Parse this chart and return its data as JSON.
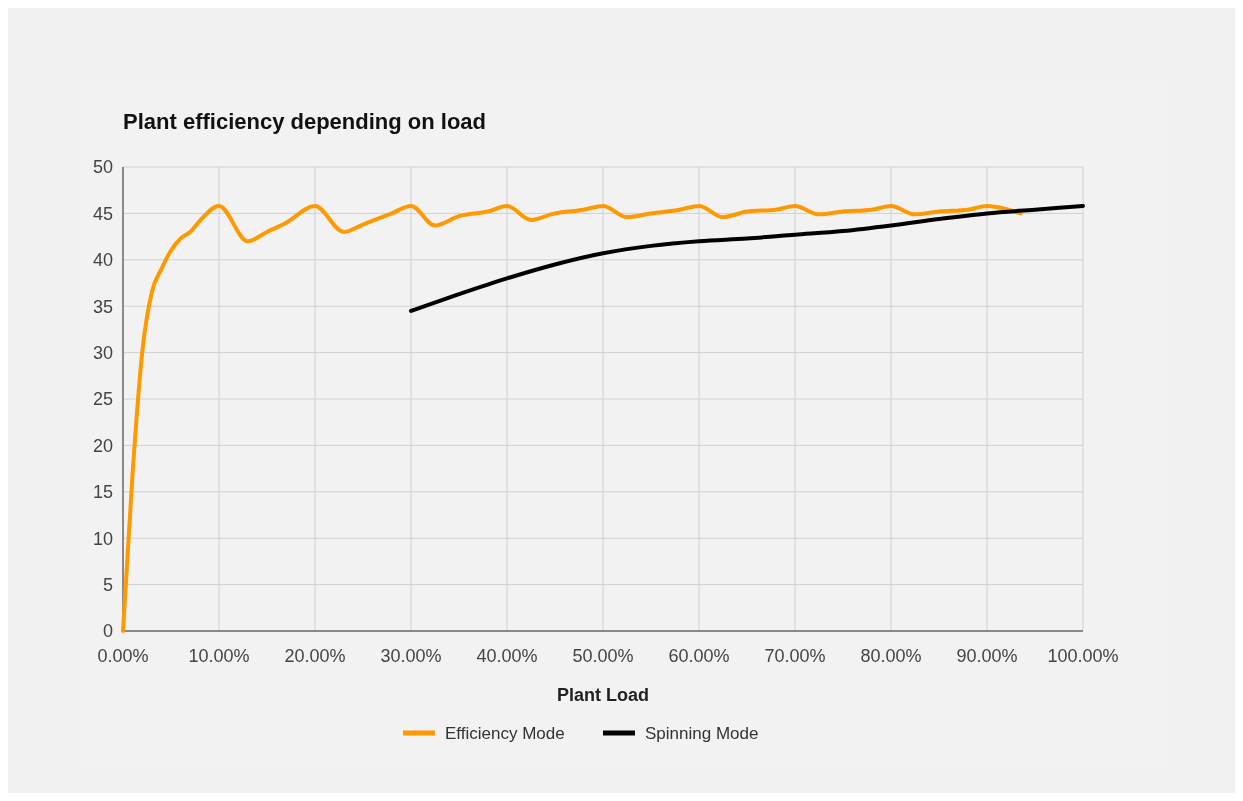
{
  "chart_data": {
    "type": "line",
    "title": "Plant efficiency depending on load",
    "xlabel": "Plant Load",
    "xlim": [
      0,
      100
    ],
    "xticks": [
      {
        "value": 0,
        "label": "0.00%"
      },
      {
        "value": 10,
        "label": "10.00%"
      },
      {
        "value": 20,
        "label": "20.00%"
      },
      {
        "value": 30,
        "label": "30.00%"
      },
      {
        "value": 40,
        "label": "40.00%"
      },
      {
        "value": 50,
        "label": "50.00%"
      },
      {
        "value": 60,
        "label": "60.00%"
      },
      {
        "value": 70,
        "label": "70.00%"
      },
      {
        "value": 80,
        "label": "80.00%"
      },
      {
        "value": 90,
        "label": "90.00%"
      },
      {
        "value": 100,
        "label": "100.00%"
      }
    ],
    "ylim": [
      0,
      50
    ],
    "yticks": [
      0,
      5,
      10,
      15,
      20,
      25,
      30,
      35,
      40,
      45,
      50
    ],
    "grid": true,
    "legend": "bottom",
    "marker": "none",
    "line_style": "solid",
    "series": [
      {
        "name": "Efficiency Mode",
        "color": "#ff9900",
        "x": [
          0,
          1,
          2,
          3,
          4,
          5,
          6,
          7,
          8,
          10,
          13,
          15,
          17,
          20,
          23,
          25,
          28,
          30,
          32.5,
          35,
          38,
          40,
          42.5,
          45,
          48,
          50,
          52.5,
          55,
          58,
          60,
          62.5,
          65,
          68,
          70,
          72.5,
          75,
          78,
          80,
          82.5,
          85,
          88,
          90,
          93.5
        ],
        "values": [
          0,
          17,
          30,
          36.5,
          39,
          41,
          42.3,
          43,
          44.2,
          45.8,
          42,
          43,
          44,
          45.8,
          43,
          43.8,
          45,
          45.8,
          43.7,
          44.7,
          45.2,
          45.8,
          44.3,
          45,
          45.4,
          45.8,
          44.6,
          45,
          45.4,
          45.8,
          44.6,
          45.2,
          45.4,
          45.8,
          44.9,
          45.2,
          45.4,
          45.8,
          44.9,
          45.2,
          45.4,
          45.8,
          45
        ]
      },
      {
        "name": "Spinning Mode",
        "color": "#000000",
        "x": [
          30,
          35,
          40,
          45,
          50,
          55,
          60,
          65,
          70,
          75,
          80,
          85,
          90,
          95,
          100
        ],
        "values": [
          34.5,
          36.3,
          38,
          39.5,
          40.7,
          41.5,
          42,
          42.3,
          42.7,
          43.1,
          43.7,
          44.4,
          45,
          45.4,
          45.8
        ]
      }
    ]
  }
}
